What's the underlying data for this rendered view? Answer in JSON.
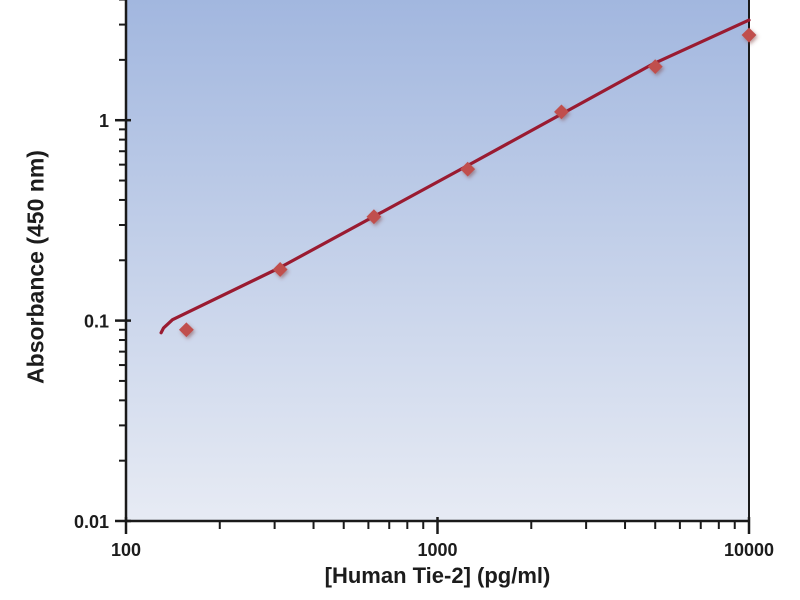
{
  "chart_data": {
    "type": "scatter",
    "title": "",
    "xlabel": "[Human Tie-2] (pg/ml)",
    "ylabel": "Absorbance (450 nm)",
    "x_scale": "log",
    "y_scale": "log",
    "xlim": [
      100,
      10000
    ],
    "ylim": [
      0.01,
      4
    ],
    "x_ticks": [
      100,
      1000,
      10000
    ],
    "x_tick_labels": [
      "100",
      "1000",
      "10000"
    ],
    "y_ticks": [
      1,
      0.1,
      0.01
    ],
    "y_tick_labels": [
      "1",
      "0.1",
      "0.01"
    ],
    "grid": false,
    "legend": "none",
    "plot_bg_gradient": [
      "#a2b7df",
      "#e7ebf4"
    ],
    "axis_color": "#1a1a1a",
    "text_color": "#1c1c1c",
    "series": [
      {
        "name": "standards",
        "type": "scatter",
        "marker": "diamond",
        "marker_color": "#c0504d",
        "points": [
          [
            156.25,
            0.09
          ],
          [
            312.5,
            0.18
          ],
          [
            625,
            0.33
          ],
          [
            1250,
            0.57
          ],
          [
            2500,
            1.1
          ],
          [
            5000,
            1.85
          ],
          [
            10000,
            2.66
          ]
        ]
      },
      {
        "name": "fit-line",
        "type": "line",
        "line_color": "#9a1b31",
        "points": [
          [
            129.6,
            0.087
          ],
          [
            132,
            0.092
          ],
          [
            141,
            0.101
          ],
          [
            310,
            0.183
          ],
          [
            1225,
            0.584
          ],
          [
            4920,
            1.91
          ],
          [
            10000,
            3.16
          ]
        ]
      }
    ]
  }
}
